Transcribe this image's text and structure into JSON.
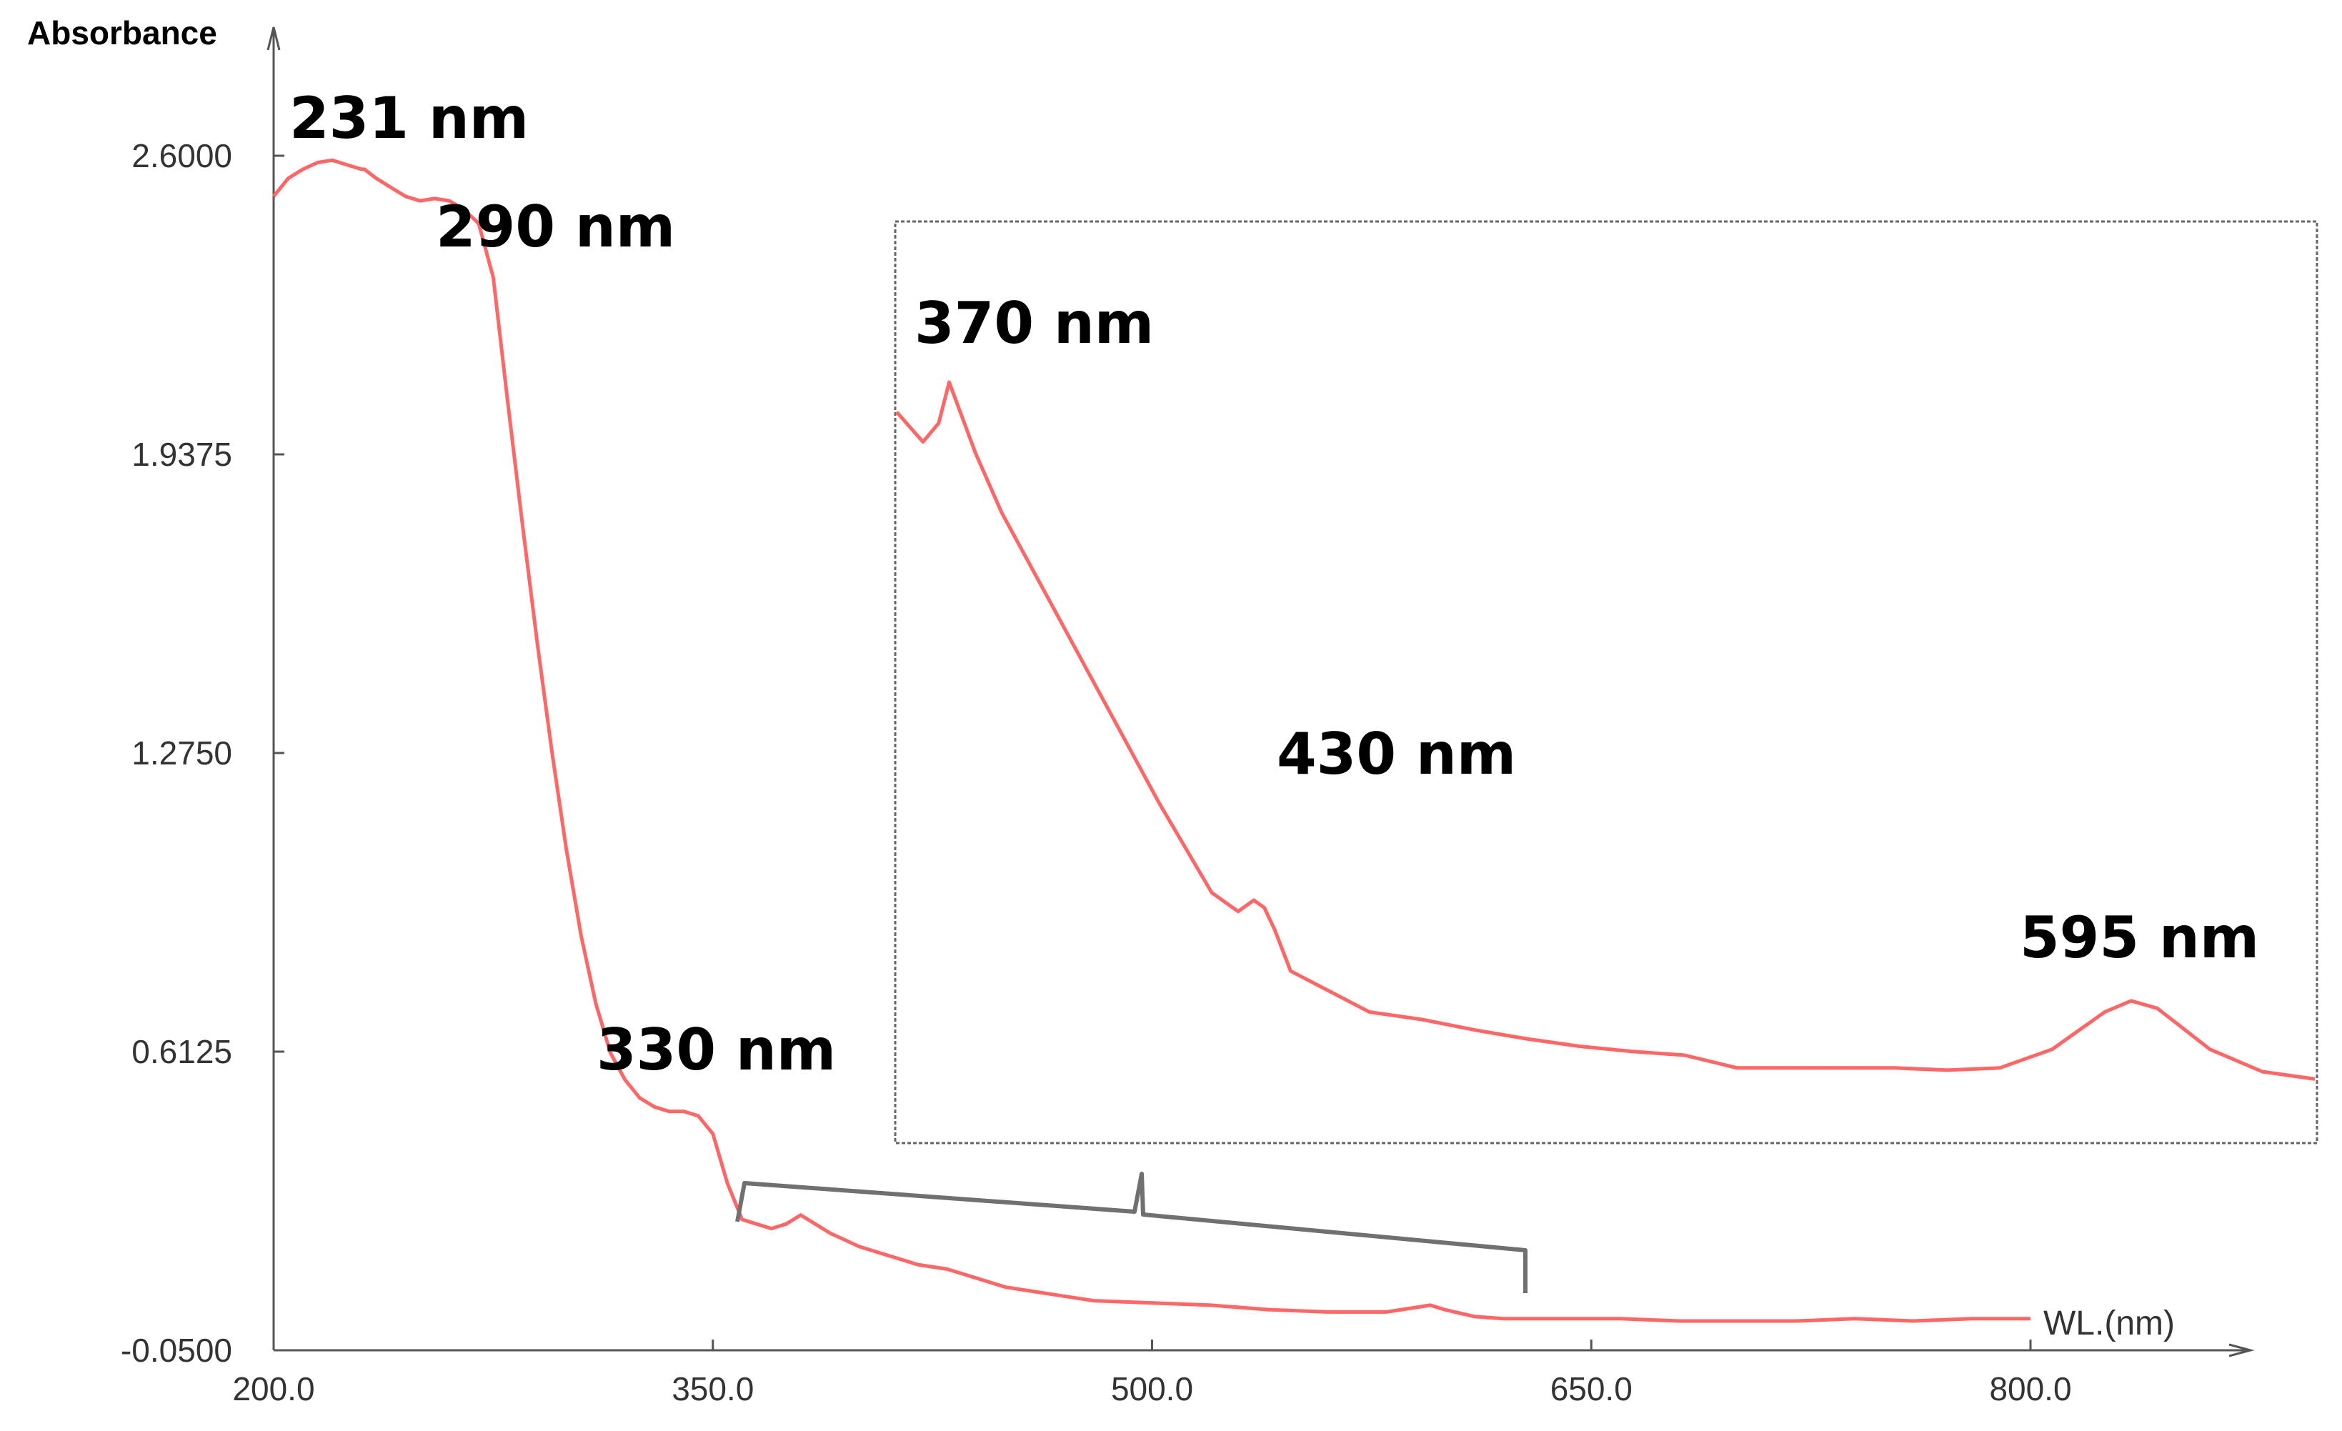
{
  "chart_data": {
    "type": "line",
    "ylabel": "Absorbance",
    "xlabel": "WL.(nm)",
    "xlim": [
      200,
      900
    ],
    "ylim": [
      -0.05,
      2.6
    ],
    "x_ticks": [
      "200.0",
      "350.0",
      "500.0",
      "650.0",
      "800.0"
    ],
    "y_ticks": [
      "-0.0500",
      "0.6125",
      "1.2750",
      "1.9375",
      "2.6000"
    ],
    "line_color": "#ff6666",
    "grid": false,
    "series": [
      {
        "x": [
          200,
          205,
          210,
          215,
          220,
          225,
          230,
          231,
          235,
          240,
          245,
          250,
          255,
          260,
          265,
          270,
          275,
          280,
          285,
          290,
          295,
          300,
          305,
          310,
          315,
          320,
          325,
          330,
          335,
          340,
          345,
          350,
          355,
          360,
          365,
          370,
          375,
          380,
          390,
          400,
          410,
          420,
          430,
          440,
          450,
          460,
          470,
          480,
          500,
          520,
          540,
          560,
          580,
          590,
          595,
          600,
          610,
          620,
          640,
          660,
          680,
          700,
          720,
          740,
          760,
          780,
          800
        ],
        "y": [
          2.51,
          2.55,
          2.57,
          2.585,
          2.59,
          2.58,
          2.57,
          2.57,
          2.55,
          2.53,
          2.51,
          2.5,
          2.505,
          2.5,
          2.48,
          2.45,
          2.33,
          2.05,
          1.78,
          1.52,
          1.28,
          1.06,
          0.87,
          0.72,
          0.61,
          0.55,
          0.51,
          0.49,
          0.48,
          0.48,
          0.47,
          0.43,
          0.32,
          0.24,
          0.23,
          0.22,
          0.23,
          0.25,
          0.21,
          0.18,
          0.16,
          0.14,
          0.13,
          0.11,
          0.09,
          0.08,
          0.07,
          0.06,
          0.055,
          0.05,
          0.04,
          0.035,
          0.035,
          0.045,
          0.05,
          0.04,
          0.025,
          0.02,
          0.02,
          0.02,
          0.015,
          0.015,
          0.015,
          0.02,
          0.015,
          0.02,
          0.02
        ]
      }
    ],
    "annotations": [
      "231 nm",
      "290 nm",
      "330 nm"
    ],
    "inset": {
      "x_range": [
        360,
        630
      ],
      "series": [
        {
          "x": [
            360,
            365,
            368,
            370,
            375,
            380,
            390,
            400,
            410,
            420,
            425,
            428,
            430,
            432,
            435,
            450,
            460,
            470,
            480,
            490,
            500,
            510,
            520,
            530,
            540,
            550,
            560,
            570,
            580,
            590,
            595,
            600,
            610,
            620,
            630
          ],
          "y": [
            0.835,
            0.795,
            0.82,
            0.875,
            0.78,
            0.7,
            0.57,
            0.44,
            0.31,
            0.19,
            0.165,
            0.18,
            0.17,
            0.14,
            0.085,
            0.03,
            0.02,
            0.006,
            -0.006,
            -0.016,
            -0.023,
            -0.028,
            -0.045,
            -0.045,
            -0.045,
            -0.045,
            -0.048,
            -0.045,
            -0.02,
            0.03,
            0.045,
            0.035,
            -0.02,
            -0.05,
            -0.06
          ]
        }
      ],
      "annotations": [
        "370 nm",
        "430 nm",
        "595 nm"
      ]
    }
  }
}
